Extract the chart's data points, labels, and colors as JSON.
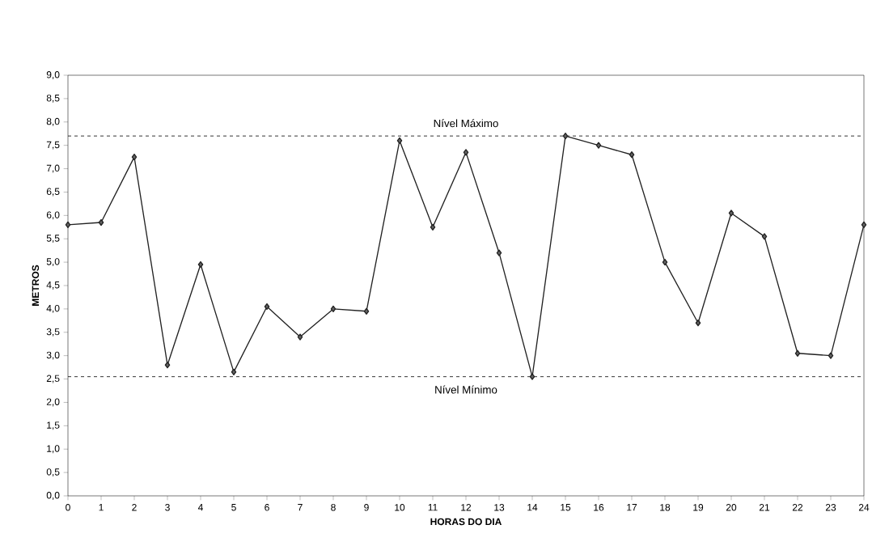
{
  "chart_data": {
    "type": "line",
    "xlabel": "HORAS DO DIA",
    "ylabel": "METROS",
    "x": [
      0,
      1,
      2,
      3,
      4,
      5,
      6,
      7,
      8,
      9,
      10,
      11,
      12,
      13,
      14,
      15,
      16,
      17,
      18,
      19,
      20,
      21,
      22,
      23,
      24
    ],
    "series": [
      {
        "color": "#222222",
        "values": [
          5.8,
          5.85,
          7.25,
          2.8,
          4.95,
          2.65,
          4.05,
          3.4,
          4.0,
          3.95,
          7.6,
          5.75,
          7.35,
          5.2,
          2.55,
          7.7,
          7.5,
          7.3,
          5.0,
          3.7,
          6.05,
          5.55,
          3.05,
          3.0,
          5.8
        ]
      }
    ],
    "marker": "diamond",
    "line_style": "solid",
    "xlim": [
      0,
      24
    ],
    "xticks": [
      0,
      1,
      2,
      3,
      4,
      5,
      6,
      7,
      8,
      9,
      10,
      11,
      12,
      13,
      14,
      15,
      16,
      17,
      18,
      19,
      20,
      21,
      22,
      23,
      24
    ],
    "ylim": [
      0,
      9
    ],
    "yticks": [
      {
        "value": 0,
        "label": "0,0"
      },
      {
        "value": 0.5,
        "label": "0,5"
      },
      {
        "value": 1,
        "label": "1,0"
      },
      {
        "value": 1.5,
        "label": "1,5"
      },
      {
        "value": 2,
        "label": "2,0"
      },
      {
        "value": 2.5,
        "label": "2,5"
      },
      {
        "value": 3,
        "label": "3,0"
      },
      {
        "value": 3.5,
        "label": "3,5"
      },
      {
        "value": 4,
        "label": "4,0"
      },
      {
        "value": 4.5,
        "label": "4,5"
      },
      {
        "value": 5,
        "label": "5,0"
      },
      {
        "value": 5.5,
        "label": "5,5"
      },
      {
        "value": 6,
        "label": "6,0"
      },
      {
        "value": 6.5,
        "label": "6,5"
      },
      {
        "value": 7,
        "label": "7,0"
      },
      {
        "value": 7.5,
        "label": "7,5"
      },
      {
        "value": 8,
        "label": "8,0"
      },
      {
        "value": 8.5,
        "label": "8,5"
      },
      {
        "value": 9,
        "label": "9,0"
      }
    ],
    "ref_lines": [
      {
        "axis": "y",
        "value": 7.7,
        "label": "Nível Máximo",
        "line_style": "dashed"
      },
      {
        "axis": "y",
        "value": 2.55,
        "label": "Nível Mínimo",
        "line_style": "dashed"
      }
    ],
    "tick_labels": "xy"
  }
}
